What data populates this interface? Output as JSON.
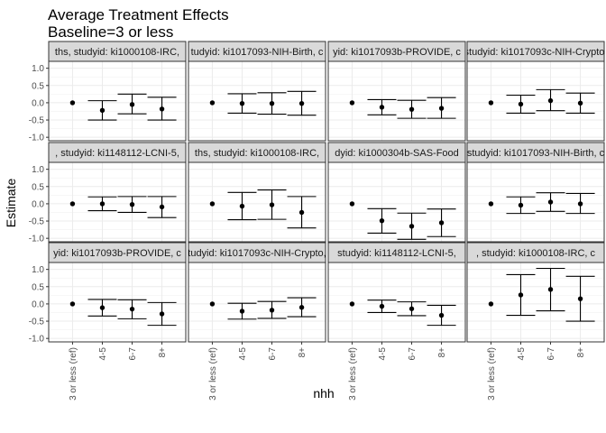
{
  "chart_data": {
    "type": "errorbar",
    "title": "Average Treatment Effects",
    "subtitle": "Baseline=3 or less",
    "xlabel": "nhh",
    "ylabel": "Estimate",
    "categories": [
      "3 or less (ref)",
      "4-5",
      "6-7",
      "8+"
    ],
    "ylim": [
      -1.1,
      1.2
    ],
    "yticks": [
      -1.0,
      -0.5,
      0.0,
      0.5,
      1.0
    ],
    "ytick_labels": [
      "-1.0",
      "-0.5",
      "0.0",
      "0.5",
      "1.0"
    ],
    "grid": true,
    "legend": "none",
    "facet_layout": {
      "rows": 3,
      "cols": 4
    },
    "panels": [
      {
        "strip": "ths, studyid: ki1000108-IRC,",
        "estimate": [
          0,
          -0.22,
          -0.05,
          -0.18
        ],
        "lower": [
          null,
          -0.5,
          -0.32,
          -0.5
        ],
        "upper": [
          null,
          0.06,
          0.25,
          0.16
        ]
      },
      {
        "strip": "tudyid: ki1017093-NIH-Birth, c",
        "estimate": [
          0,
          -0.02,
          -0.02,
          -0.02
        ],
        "lower": [
          null,
          -0.3,
          -0.33,
          -0.36
        ],
        "upper": [
          null,
          0.26,
          0.29,
          0.33
        ]
      },
      {
        "strip": "yid: ki1017093b-PROVIDE, c",
        "estimate": [
          0,
          -0.13,
          -0.19,
          -0.16
        ],
        "lower": [
          null,
          -0.35,
          -0.45,
          -0.45
        ],
        "upper": [
          null,
          0.09,
          0.07,
          0.15
        ]
      },
      {
        "strip": "studyid: ki1017093c-NIH-Crypto,",
        "estimate": [
          0,
          -0.04,
          0.06,
          -0.01
        ],
        "lower": [
          null,
          -0.3,
          -0.23,
          -0.3
        ],
        "upper": [
          null,
          0.22,
          0.38,
          0.28
        ]
      },
      {
        "strip": ", studyid: ki1148112-LCNI-5,",
        "estimate": [
          0,
          0.0,
          -0.02,
          -0.09
        ],
        "lower": [
          null,
          -0.2,
          -0.25,
          -0.4
        ],
        "upper": [
          null,
          0.2,
          0.21,
          0.21
        ]
      },
      {
        "strip": "ths, studyid: ki1000108-IRC,",
        "estimate": [
          0,
          -0.07,
          -0.03,
          -0.25
        ],
        "lower": [
          null,
          -0.46,
          -0.45,
          -0.7
        ],
        "upper": [
          null,
          0.33,
          0.4,
          0.21
        ]
      },
      {
        "strip": "dyid: ki1000304b-SAS-Food",
        "estimate": [
          0,
          -0.49,
          -0.65,
          -0.55
        ],
        "lower": [
          null,
          -0.85,
          -1.03,
          -0.95
        ],
        "upper": [
          null,
          -0.14,
          -0.27,
          -0.15
        ]
      },
      {
        "strip": "studyid: ki1017093-NIH-Birth, c",
        "estimate": [
          0,
          -0.04,
          0.05,
          0.0
        ],
        "lower": [
          null,
          -0.28,
          -0.22,
          -0.28
        ],
        "upper": [
          null,
          0.2,
          0.32,
          0.3
        ]
      },
      {
        "strip": "yid: ki1017093b-PROVIDE, c",
        "estimate": [
          0,
          -0.11,
          -0.15,
          -0.29
        ],
        "lower": [
          null,
          -0.35,
          -0.43,
          -0.62
        ],
        "upper": [
          null,
          0.13,
          0.12,
          0.04
        ]
      },
      {
        "strip": "tudyid: ki1017093c-NIH-Crypto,",
        "estimate": [
          0,
          -0.21,
          -0.18,
          -0.1
        ],
        "lower": [
          null,
          -0.44,
          -0.42,
          -0.37
        ],
        "upper": [
          null,
          0.02,
          0.07,
          0.18
        ]
      },
      {
        "strip": "studyid: ki1148112-LCNI-5,",
        "estimate": [
          0,
          -0.07,
          -0.14,
          -0.33
        ],
        "lower": [
          null,
          -0.25,
          -0.34,
          -0.62
        ],
        "upper": [
          null,
          0.11,
          0.06,
          -0.04
        ]
      },
      {
        "strip": ", studyid: ki1000108-IRC, c",
        "estimate": [
          0,
          0.26,
          0.42,
          0.15
        ],
        "lower": [
          null,
          -0.33,
          -0.2,
          -0.5
        ],
        "upper": [
          null,
          0.85,
          1.03,
          0.8
        ]
      }
    ]
  }
}
